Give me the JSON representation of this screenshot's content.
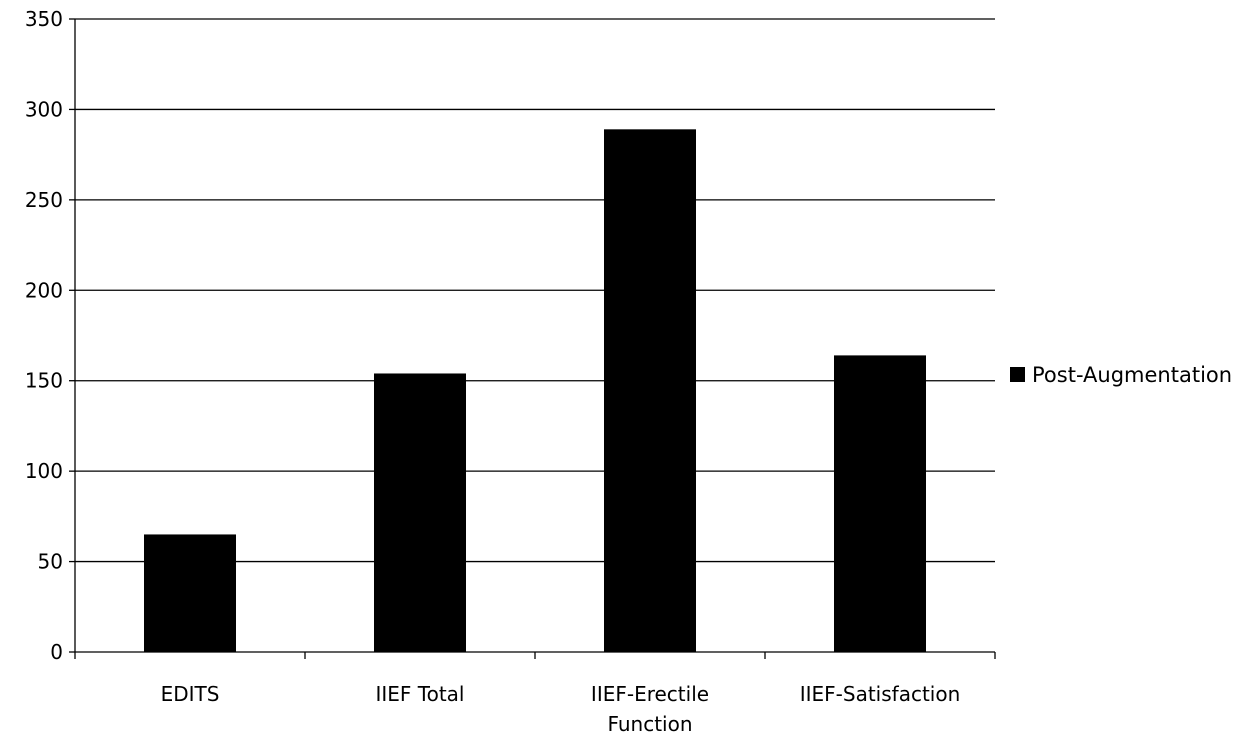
{
  "chart_data": {
    "type": "bar",
    "categories": [
      "EDITS",
      "IIEF Total",
      "IIEF-Erectile Function",
      "IIEF-Satisfaction"
    ],
    "category_lines": [
      [
        "EDITS"
      ],
      [
        "IIEF Total"
      ],
      [
        "IIEF-Erectile",
        "Function"
      ],
      [
        "IIEF-Satisfaction"
      ]
    ],
    "series": [
      {
        "name": "Post-Augmentation",
        "values": [
          65,
          154,
          289,
          164
        ],
        "color": "#000000"
      }
    ],
    "ylim": [
      0,
      350
    ],
    "yticks": [
      0,
      50,
      100,
      150,
      200,
      250,
      300,
      350
    ],
    "grid": true,
    "legend_position": "right"
  }
}
